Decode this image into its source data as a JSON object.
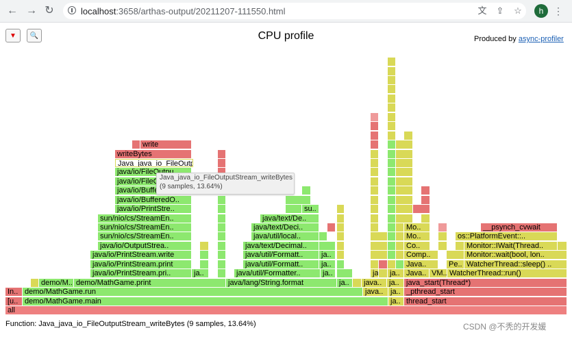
{
  "browser": {
    "url_host": "localhost",
    "url_path": ":3658/arthas-output/20211207-111550.html",
    "avatar_letter": "h",
    "icons": {
      "back": "back-arrow-icon",
      "forward": "forward-arrow-icon",
      "reload": "reload-icon",
      "info": "info-icon",
      "translate": "translate-icon",
      "share": "share-icon",
      "bookmark": "star-icon",
      "menu": "kebab-menu-icon"
    }
  },
  "page": {
    "title": "CPU profile",
    "produced_prefix": "Produced by",
    "produced_link": "async-profiler",
    "reverse_button_symbol": "▼",
    "search_button_symbol": "🔍"
  },
  "colors": {
    "red": "#e57373",
    "green": "#8de86f",
    "yellow": "#d9d957",
    "lightred": "#ef9a9a"
  },
  "frames": [
    {
      "l": 8,
      "r": 828,
      "row": 0,
      "c": "#ee8080",
      "t": "all"
    },
    {
      "l": 8,
      "r": 33,
      "row": 1,
      "c": "#e57373",
      "t": "[u.."
    },
    {
      "l": 33,
      "r": 567,
      "row": 1,
      "c": "#8de86f",
      "t": "demo/MathGame.main"
    },
    {
      "l": 567,
      "r": 590,
      "row": 1,
      "c": "#d9d957",
      "t": "ja.."
    },
    {
      "l": 590,
      "r": 828,
      "row": 1,
      "c": "#e57373",
      "t": "thread_start"
    },
    {
      "l": 8,
      "r": 33,
      "row": 2,
      "c": "#e57373",
      "t": "In.."
    },
    {
      "l": 33,
      "r": 530,
      "row": 2,
      "c": "#8de86f",
      "t": "demo/MathGame.run"
    },
    {
      "l": 530,
      "r": 567,
      "row": 2,
      "c": "#d9d957",
      "t": "java.."
    },
    {
      "l": 567,
      "r": 590,
      "row": 2,
      "c": "#d9d957",
      "t": "ja.."
    },
    {
      "l": 590,
      "r": 828,
      "row": 2,
      "c": "#e57373",
      "t": "_pthread_start"
    },
    {
      "l": 45,
      "r": 57,
      "row": 3,
      "c": "#d9d957",
      "t": ""
    },
    {
      "l": 57,
      "r": 108,
      "row": 3,
      "c": "#8de86f",
      "t": "demo/M.."
    },
    {
      "l": 108,
      "r": 330,
      "row": 3,
      "c": "#8de86f",
      "t": "demo/MathGame.print"
    },
    {
      "l": 330,
      "r": 492,
      "row": 3,
      "c": "#8de86f",
      "t": "java/lang/String.format"
    },
    {
      "l": 492,
      "r": 515,
      "row": 3,
      "c": "#8de86f",
      "t": "ja.."
    },
    {
      "l": 515,
      "r": 528,
      "row": 3,
      "c": "#d9d957",
      "t": ""
    },
    {
      "l": 528,
      "r": 565,
      "row": 3,
      "c": "#d9d957",
      "t": "java.."
    },
    {
      "l": 565,
      "r": 590,
      "row": 3,
      "c": "#d9d957",
      "t": "ja.."
    },
    {
      "l": 590,
      "r": 828,
      "row": 3,
      "c": "#e57373",
      "t": "java_start(Thread*)"
    },
    {
      "l": 132,
      "r": 280,
      "row": 4,
      "c": "#8de86f",
      "t": "java/io/PrintStream.pri.."
    },
    {
      "l": 280,
      "r": 305,
      "row": 4,
      "c": "#8de86f",
      "t": "ja.."
    },
    {
      "l": 318,
      "r": 330,
      "row": 4,
      "c": "#8de86f",
      "t": ""
    },
    {
      "l": 342,
      "r": 468,
      "row": 4,
      "c": "#8de86f",
      "t": "java/util/Formatter.."
    },
    {
      "l": 468,
      "r": 490,
      "row": 4,
      "c": "#8de86f",
      "t": "ja.."
    },
    {
      "l": 492,
      "r": 515,
      "row": 4,
      "c": "#8de86f",
      "t": ""
    },
    {
      "l": 541,
      "r": 553,
      "row": 4,
      "c": "#d9d957",
      "t": "ja.."
    },
    {
      "l": 553,
      "r": 566,
      "row": 4,
      "c": "#d9d957",
      "t": ""
    },
    {
      "l": 566,
      "r": 590,
      "row": 4,
      "c": "#d9d957",
      "t": "ja.."
    },
    {
      "l": 590,
      "r": 627,
      "row": 4,
      "c": "#d9d957",
      "t": "Java.."
    },
    {
      "l": 627,
      "r": 653,
      "row": 4,
      "c": "#d9d957",
      "t": "VM.."
    },
    {
      "l": 653,
      "r": 828,
      "row": 4,
      "c": "#d9d957",
      "t": "WatcherThread::run()"
    },
    {
      "l": 132,
      "r": 280,
      "row": 5,
      "c": "#8de86f",
      "t": "java/io/PrintStream.print"
    },
    {
      "l": 292,
      "r": 305,
      "row": 5,
      "c": "#8de86f",
      "t": ""
    },
    {
      "l": 318,
      "r": 330,
      "row": 5,
      "c": "#8de86f",
      "t": ""
    },
    {
      "l": 355,
      "r": 466,
      "row": 5,
      "c": "#8de86f",
      "t": "java/util/Formatt.."
    },
    {
      "l": 466,
      "r": 490,
      "row": 5,
      "c": "#8de86f",
      "t": "ja.."
    },
    {
      "l": 492,
      "r": 503,
      "row": 5,
      "c": "#8de86f",
      "t": ""
    },
    {
      "l": 541,
      "r": 553,
      "row": 5,
      "c": "#d9d957",
      "t": ""
    },
    {
      "l": 553,
      "r": 566,
      "row": 5,
      "c": "#e57373",
      "t": ""
    },
    {
      "l": 566,
      "r": 578,
      "row": 5,
      "c": "#d9d957",
      "t": ""
    },
    {
      "l": 578,
      "r": 590,
      "row": 5,
      "c": "#8de86f",
      "t": ""
    },
    {
      "l": 590,
      "r": 640,
      "row": 5,
      "c": "#d9d957",
      "t": "Java.."
    },
    {
      "l": 652,
      "r": 678,
      "row": 5,
      "c": "#d9d957",
      "t": "Pe.."
    },
    {
      "l": 678,
      "r": 828,
      "row": 5,
      "c": "#d9d957",
      "t": "WatcherThread::sleep() .."
    },
    {
      "l": 132,
      "r": 280,
      "row": 6,
      "c": "#8de86f",
      "t": "java/io/PrintStream.write"
    },
    {
      "l": 292,
      "r": 305,
      "row": 6,
      "c": "#8de86f",
      "t": ""
    },
    {
      "l": 318,
      "r": 330,
      "row": 6,
      "c": "#8de86f",
      "t": ""
    },
    {
      "l": 355,
      "r": 466,
      "row": 6,
      "c": "#8de86f",
      "t": "java/util/Formatt.."
    },
    {
      "l": 466,
      "r": 490,
      "row": 6,
      "c": "#8de86f",
      "t": "ja.."
    },
    {
      "l": 492,
      "r": 503,
      "row": 6,
      "c": "#d9d957",
      "t": ""
    },
    {
      "l": 541,
      "r": 566,
      "row": 6,
      "c": "#d9d957",
      "t": ""
    },
    {
      "l": 566,
      "r": 578,
      "row": 6,
      "c": "#8de86f",
      "t": ""
    },
    {
      "l": 578,
      "r": 590,
      "row": 6,
      "c": "#d9d957",
      "t": ""
    },
    {
      "l": 590,
      "r": 640,
      "row": 6,
      "c": "#d9d957",
      "t": "Comp.."
    },
    {
      "l": 652,
      "r": 678,
      "row": 6,
      "c": "#d9d957",
      "t": ""
    },
    {
      "l": 678,
      "r": 828,
      "row": 6,
      "c": "#d9d957",
      "t": "Monitor::wait(bool, lon.."
    },
    {
      "l": 143,
      "r": 280,
      "row": 7,
      "c": "#8de86f",
      "t": "java/io/OutputStrea.."
    },
    {
      "l": 292,
      "r": 305,
      "row": 7,
      "c": "#d9d957",
      "t": ""
    },
    {
      "l": 318,
      "r": 330,
      "row": 7,
      "c": "#8de86f",
      "t": ""
    },
    {
      "l": 355,
      "r": 466,
      "row": 7,
      "c": "#8de86f",
      "t": "java/text/Decimal.."
    },
    {
      "l": 466,
      "r": 490,
      "row": 7,
      "c": "#8de86f",
      "t": ""
    },
    {
      "l": 492,
      "r": 503,
      "row": 7,
      "c": "#d9d957",
      "t": ""
    },
    {
      "l": 541,
      "r": 566,
      "row": 7,
      "c": "#d9d957",
      "t": ""
    },
    {
      "l": 566,
      "r": 578,
      "row": 7,
      "c": "#8de86f",
      "t": ""
    },
    {
      "l": 578,
      "r": 590,
      "row": 7,
      "c": "#d9d957",
      "t": ""
    },
    {
      "l": 590,
      "r": 628,
      "row": 7,
      "c": "#d9d957",
      "t": "Co.."
    },
    {
      "l": 640,
      "r": 653,
      "row": 7,
      "c": "#d9d957",
      "t": ""
    },
    {
      "l": 665,
      "r": 678,
      "row": 7,
      "c": "#d9d957",
      "t": ""
    },
    {
      "l": 678,
      "r": 814,
      "row": 7,
      "c": "#d9d957",
      "t": "Monitor::IWait(Thread.."
    },
    {
      "l": 814,
      "r": 828,
      "row": 7,
      "c": "#d9d957",
      "t": ""
    },
    {
      "l": 143,
      "r": 280,
      "row": 8,
      "c": "#8de86f",
      "t": "sun/nio/cs/StreamEn.."
    },
    {
      "l": 318,
      "r": 330,
      "row": 8,
      "c": "#8de86f",
      "t": ""
    },
    {
      "l": 367,
      "r": 466,
      "row": 8,
      "c": "#8de86f",
      "t": "java/util/local.."
    },
    {
      "l": 466,
      "r": 478,
      "row": 8,
      "c": "#8de86f",
      "t": ""
    },
    {
      "l": 492,
      "r": 503,
      "row": 8,
      "c": "#d9d957",
      "t": ""
    },
    {
      "l": 541,
      "r": 566,
      "row": 8,
      "c": "#d9d957",
      "t": ""
    },
    {
      "l": 566,
      "r": 578,
      "row": 8,
      "c": "#8de86f",
      "t": ""
    },
    {
      "l": 578,
      "r": 590,
      "row": 8,
      "c": "#d9d957",
      "t": ""
    },
    {
      "l": 590,
      "r": 628,
      "row": 8,
      "c": "#d9d957",
      "t": "Mo.."
    },
    {
      "l": 640,
      "r": 653,
      "row": 8,
      "c": "#d9d957",
      "t": ""
    },
    {
      "l": 665,
      "r": 814,
      "row": 8,
      "c": "#d9d957",
      "t": "os::PlatformEvent::.."
    },
    {
      "l": 143,
      "r": 280,
      "row": 9,
      "c": "#8de86f",
      "t": "sun/nio/cs/StreamEn.."
    },
    {
      "l": 318,
      "r": 330,
      "row": 9,
      "c": "#8de86f",
      "t": ""
    },
    {
      "l": 367,
      "r": 466,
      "row": 9,
      "c": "#8de86f",
      "t": "java/text/Deci.."
    },
    {
      "l": 478,
      "r": 490,
      "row": 9,
      "c": "#e57373",
      "t": ""
    },
    {
      "l": 492,
      "r": 503,
      "row": 9,
      "c": "#d9d957",
      "t": ""
    },
    {
      "l": 541,
      "r": 553,
      "row": 9,
      "c": "#d9d957",
      "t": ""
    },
    {
      "l": 566,
      "r": 578,
      "row": 9,
      "c": "#8de86f",
      "t": ""
    },
    {
      "l": 578,
      "r": 590,
      "row": 9,
      "c": "#d9d957",
      "t": ""
    },
    {
      "l": 590,
      "r": 628,
      "row": 9,
      "c": "#d9d957",
      "t": "Mo.."
    },
    {
      "l": 640,
      "r": 653,
      "row": 9,
      "c": "#ef9a9a",
      "t": ""
    },
    {
      "l": 702,
      "r": 814,
      "row": 9,
      "c": "#e57373",
      "t": "__psynch_cvwait"
    },
    {
      "l": 143,
      "r": 280,
      "row": 10,
      "c": "#8de86f",
      "t": "sun/nio/cs/StreamEn.."
    },
    {
      "l": 318,
      "r": 330,
      "row": 10,
      "c": "#8de86f",
      "t": ""
    },
    {
      "l": 380,
      "r": 466,
      "row": 10,
      "c": "#8de86f",
      "t": "java/text/De.."
    },
    {
      "l": 492,
      "r": 503,
      "row": 10,
      "c": "#d9d957",
      "t": ""
    },
    {
      "l": 541,
      "r": 553,
      "row": 10,
      "c": "#d9d957",
      "t": ""
    },
    {
      "l": 566,
      "r": 578,
      "row": 10,
      "c": "#8de86f",
      "t": ""
    },
    {
      "l": 578,
      "r": 603,
      "row": 10,
      "c": "#d9d957",
      "t": ""
    },
    {
      "l": 615,
      "r": 628,
      "row": 10,
      "c": "#d9d957",
      "t": ""
    },
    {
      "l": 168,
      "r": 280,
      "row": 11,
      "c": "#8de86f",
      "t": "java/io/PrintStre.."
    },
    {
      "l": 318,
      "r": 330,
      "row": 11,
      "c": "#8de86f",
      "t": ""
    },
    {
      "l": 417,
      "r": 441,
      "row": 11,
      "c": "#8de86f",
      "t": ""
    },
    {
      "l": 441,
      "r": 466,
      "row": 11,
      "c": "#8de86f",
      "t": "su.."
    },
    {
      "l": 492,
      "r": 503,
      "row": 11,
      "c": "#d9d957",
      "t": ""
    },
    {
      "l": 541,
      "r": 553,
      "row": 11,
      "c": "#d9d957",
      "t": ""
    },
    {
      "l": 566,
      "r": 578,
      "row": 11,
      "c": "#8de86f",
      "t": ""
    },
    {
      "l": 578,
      "r": 603,
      "row": 11,
      "c": "#d9d957",
      "t": ""
    },
    {
      "l": 603,
      "r": 628,
      "row": 11,
      "c": "#e57373",
      "t": ""
    },
    {
      "l": 168,
      "r": 280,
      "row": 12,
      "c": "#8de86f",
      "t": "java/io/BufferedO.."
    },
    {
      "l": 318,
      "r": 330,
      "row": 12,
      "c": "#8de86f",
      "t": ""
    },
    {
      "l": 417,
      "r": 454,
      "row": 12,
      "c": "#8de86f",
      "t": ""
    },
    {
      "l": 541,
      "r": 553,
      "row": 12,
      "c": "#d9d957",
      "t": ""
    },
    {
      "l": 566,
      "r": 578,
      "row": 12,
      "c": "#8de86f",
      "t": ""
    },
    {
      "l": 578,
      "r": 603,
      "row": 12,
      "c": "#d9d957",
      "t": ""
    },
    {
      "l": 615,
      "r": 628,
      "row": 12,
      "c": "#e57373",
      "t": ""
    },
    {
      "l": 168,
      "r": 280,
      "row": 13,
      "c": "#8de86f",
      "t": "java/io/BufferedO.."
    },
    {
      "l": 318,
      "r": 330,
      "row": 13,
      "c": "#8de86f",
      "t": ""
    },
    {
      "l": 441,
      "r": 454,
      "row": 13,
      "c": "#8de86f",
      "t": ""
    },
    {
      "l": 541,
      "r": 553,
      "row": 13,
      "c": "#d9d957",
      "t": ""
    },
    {
      "l": 566,
      "r": 578,
      "row": 13,
      "c": "#8de86f",
      "t": ""
    },
    {
      "l": 578,
      "r": 603,
      "row": 13,
      "c": "#d9d957",
      "t": ""
    },
    {
      "l": 615,
      "r": 628,
      "row": 13,
      "c": "#e57373",
      "t": ""
    },
    {
      "l": 168,
      "r": 280,
      "row": 14,
      "c": "#8de86f",
      "t": "java/io/FileOutputS.."
    },
    {
      "l": 318,
      "r": 330,
      "row": 14,
      "c": "#8de86f",
      "t": ""
    },
    {
      "l": 541,
      "r": 553,
      "row": 14,
      "c": "#d9d957",
      "t": ""
    },
    {
      "l": 566,
      "r": 578,
      "row": 14,
      "c": "#8de86f",
      "t": ""
    },
    {
      "l": 578,
      "r": 603,
      "row": 14,
      "c": "#d9d957",
      "t": ""
    },
    {
      "l": 168,
      "r": 280,
      "row": 15,
      "c": "#8de86f",
      "t": "java/io/FileOutpu.."
    },
    {
      "l": 318,
      "r": 330,
      "row": 15,
      "c": "#e57373",
      "t": ""
    },
    {
      "l": 541,
      "r": 553,
      "row": 15,
      "c": "#d9d957",
      "t": ""
    },
    {
      "l": 566,
      "r": 578,
      "row": 15,
      "c": "#8de86f",
      "t": ""
    },
    {
      "l": 578,
      "r": 603,
      "row": 15,
      "c": "#d9d957",
      "t": ""
    },
    {
      "l": 168,
      "r": 282,
      "row": 16,
      "c": "#ffffff",
      "t": "Java_java_io_FileOutp",
      "hl": true
    },
    {
      "l": 318,
      "r": 330,
      "row": 16,
      "c": "#e57373",
      "t": ""
    },
    {
      "l": 541,
      "r": 553,
      "row": 16,
      "c": "#d9d957",
      "t": ""
    },
    {
      "l": 566,
      "r": 578,
      "row": 16,
      "c": "#8de86f",
      "t": ""
    },
    {
      "l": 578,
      "r": 603,
      "row": 16,
      "c": "#d9d957",
      "t": ""
    },
    {
      "l": 168,
      "r": 280,
      "row": 17,
      "c": "#e57373",
      "t": "writeBytes"
    },
    {
      "l": 318,
      "r": 330,
      "row": 17,
      "c": "#e57373",
      "t": ""
    },
    {
      "l": 541,
      "r": 553,
      "row": 17,
      "c": "#d9d957",
      "t": ""
    },
    {
      "l": 566,
      "r": 578,
      "row": 17,
      "c": "#8de86f",
      "t": ""
    },
    {
      "l": 578,
      "r": 603,
      "row": 17,
      "c": "#d9d957",
      "t": ""
    },
    {
      "l": 193,
      "r": 205,
      "row": 18,
      "c": "#e57373",
      "t": ""
    },
    {
      "l": 205,
      "r": 280,
      "row": 18,
      "c": "#e57373",
      "t": "write"
    },
    {
      "l": 541,
      "r": 553,
      "row": 18,
      "c": "#e57373",
      "t": ""
    },
    {
      "l": 566,
      "r": 578,
      "row": 18,
      "c": "#8de86f",
      "t": ""
    },
    {
      "l": 578,
      "r": 603,
      "row": 18,
      "c": "#d9d957",
      "t": ""
    },
    {
      "l": 541,
      "r": 553,
      "row": 19,
      "c": "#e57373",
      "t": ""
    },
    {
      "l": 566,
      "r": 578,
      "row": 19,
      "c": "#d9d957",
      "t": ""
    },
    {
      "l": 590,
      "r": 603,
      "row": 19,
      "c": "#d9d957",
      "t": ""
    },
    {
      "l": 541,
      "r": 553,
      "row": 20,
      "c": "#e57373",
      "t": ""
    },
    {
      "l": 566,
      "r": 578,
      "row": 20,
      "c": "#d9d957",
      "t": ""
    },
    {
      "l": 541,
      "r": 553,
      "row": 21,
      "c": "#ef9a9a",
      "t": ""
    },
    {
      "l": 566,
      "r": 578,
      "row": 21,
      "c": "#d9d957",
      "t": ""
    },
    {
      "l": 566,
      "r": 578,
      "row": 22,
      "c": "#d9d957",
      "t": ""
    },
    {
      "l": 566,
      "r": 578,
      "row": 23,
      "c": "#d9d957",
      "t": ""
    },
    {
      "l": 566,
      "r": 578,
      "row": 24,
      "c": "#d9d957",
      "t": ""
    },
    {
      "l": 566,
      "r": 578,
      "row": 25,
      "c": "#d9d957",
      "t": ""
    },
    {
      "l": 566,
      "r": 578,
      "row": 26,
      "c": "#d9d957",
      "t": ""
    },
    {
      "l": 566,
      "r": 578,
      "row": 27,
      "c": "#d9d957",
      "t": ""
    }
  ],
  "tooltip": {
    "line1": "Java_java_io_FileOutputStream_writeBytes",
    "line2": "(9 samples, 13.64%)"
  },
  "status": {
    "text": "Function: Java_java_io_FileOutputStream_writeBytes (9 samples, 13.64%)"
  },
  "watermark": "CSDN @不秃的开发媛"
}
